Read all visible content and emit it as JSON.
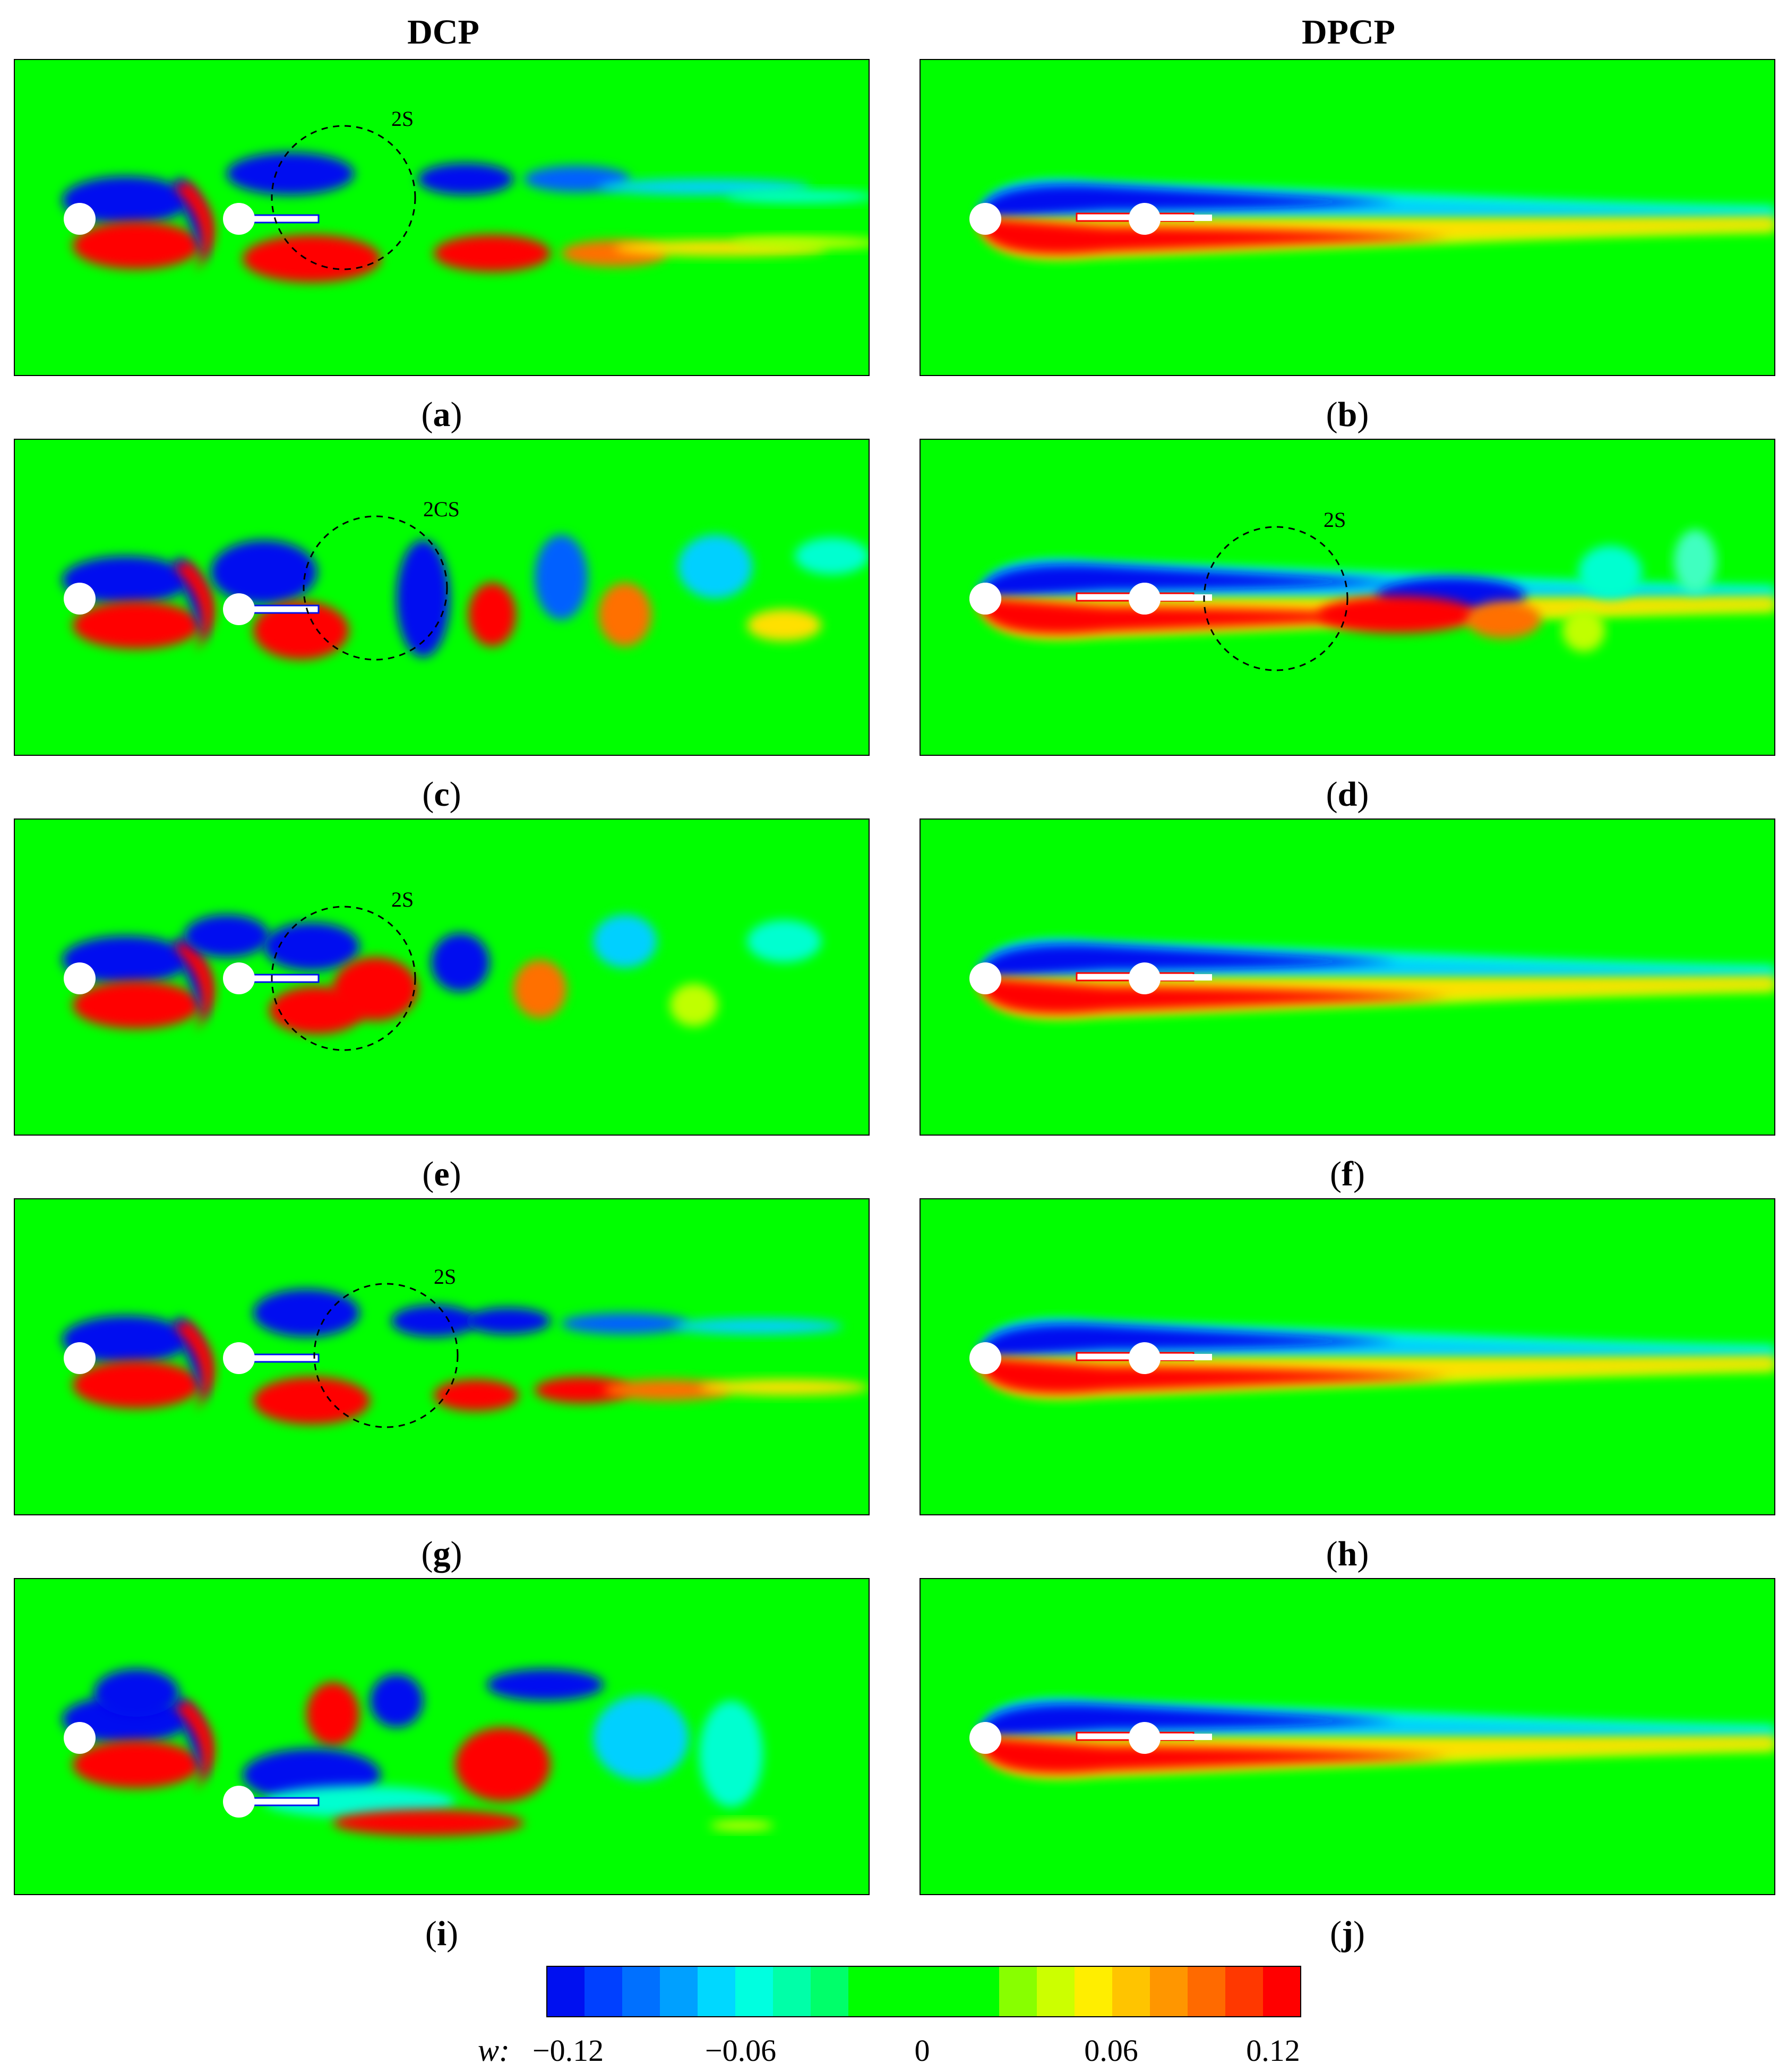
{
  "columns": [
    "DCP",
    "DPCP"
  ],
  "panels": [
    {
      "label": "a",
      "annotation": "2S"
    },
    {
      "label": "b",
      "annotation": ""
    },
    {
      "label": "c",
      "annotation": "2CS"
    },
    {
      "label": "d",
      "annotation": "2S"
    },
    {
      "label": "e",
      "annotation": "2S"
    },
    {
      "label": "f",
      "annotation": ""
    },
    {
      "label": "g",
      "annotation": "2S"
    },
    {
      "label": "h",
      "annotation": ""
    },
    {
      "label": "i",
      "annotation": ""
    },
    {
      "label": "j",
      "annotation": ""
    }
  ],
  "colorbar": {
    "label": "w:",
    "ticks": [
      "−0.12",
      "−0.06",
      "0",
      "0.06",
      "0.12"
    ],
    "colors": [
      "#0010f0",
      "#0040ff",
      "#0070ff",
      "#00a0ff",
      "#00d8ff",
      "#00ffe0",
      "#00ffa8",
      "#00ff6a",
      "#00ff00",
      "#00ff00",
      "#00ff00",
      "#00ff00",
      "#88ff00",
      "#ccff00",
      "#ffee00",
      "#ffc400",
      "#ff9600",
      "#ff6a00",
      "#ff3800",
      "#ff0000"
    ]
  },
  "palette": {
    "green": "#00ff00",
    "border": "#000000"
  }
}
